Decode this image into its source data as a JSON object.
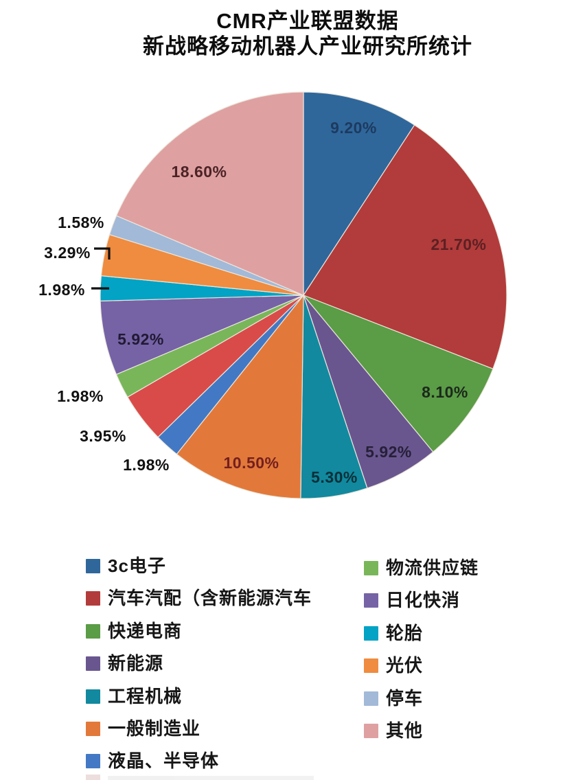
{
  "title": {
    "line1": "CMR产业联盟数据",
    "line2": "新战略移动机器人产业研究所统计"
  },
  "chart_data": {
    "type": "pie",
    "title": "CMR产业联盟数据 新战略移动机器人产业研究所统计",
    "unit": "%",
    "start_angle_deg": 0,
    "direction": "clockwise",
    "legend_position": "bottom",
    "legend_columns": 2,
    "slices": [
      {
        "name": "3c电子",
        "value": 9.2,
        "label": "9.20%",
        "color": "#2f679b"
      },
      {
        "name": "汽车汽配（含新能源汽车",
        "value": 21.7,
        "label": "21.70%",
        "color": "#b23c3b"
      },
      {
        "name": "快递电商",
        "value": 8.1,
        "label": "8.10%",
        "color": "#5b9c46"
      },
      {
        "name": "新能源",
        "value": 5.92,
        "label": "5.92%",
        "color": "#69568f"
      },
      {
        "name": "工程机械",
        "value": 5.3,
        "label": "5.30%",
        "color": "#12899e"
      },
      {
        "name": "一般制造业",
        "value": 10.5,
        "label": "10.50%",
        "color": "#e2793a"
      },
      {
        "name": "液晶、半导体",
        "value": 1.98,
        "label": "1.98%",
        "color": "#4379c4"
      },
      {
        "name": "",
        "value": 3.95,
        "label": "3.95%",
        "color": "#d94b49"
      },
      {
        "name": "物流供应链",
        "value": 1.98,
        "label": "1.98%",
        "color": "#79b65a"
      },
      {
        "name": "日化快消",
        "value": 5.92,
        "label": "5.92%",
        "color": "#7563a6"
      },
      {
        "name": "轮胎",
        "value": 1.98,
        "label": "1.98%",
        "color": "#02a3c4"
      },
      {
        "name": "光伏",
        "value": 3.29,
        "label": "3.29%",
        "color": "#ef8c40"
      },
      {
        "name": "停车",
        "value": 1.58,
        "label": "1.58%",
        "color": "#a2b9d8"
      },
      {
        "name": "其他",
        "value": 18.6,
        "label": "18.60%",
        "color": "#dfa0a1"
      }
    ]
  },
  "legend": {
    "columns": [
      {
        "slice_indices": [
          0,
          1,
          2,
          3,
          4,
          5,
          6
        ]
      },
      {
        "slice_indices": [
          8,
          9,
          10,
          11,
          12,
          13
        ]
      }
    ]
  }
}
